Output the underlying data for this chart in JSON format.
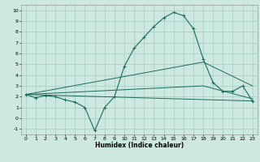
{
  "title": "",
  "xlabel": "Humidex (Indice chaleur)",
  "background_color": "#cce8e0",
  "grid_color": "#aacfc8",
  "line_color": "#1a6b5e",
  "xlim": [
    -0.5,
    23.5
  ],
  "ylim": [
    -1.5,
    10.5
  ],
  "xticks": [
    0,
    1,
    2,
    3,
    4,
    5,
    6,
    7,
    8,
    9,
    10,
    11,
    12,
    13,
    14,
    15,
    16,
    17,
    18,
    19,
    20,
    21,
    22,
    23
  ],
  "yticks": [
    -1,
    0,
    1,
    2,
    3,
    4,
    5,
    6,
    7,
    8,
    9,
    10
  ],
  "line1_x": [
    0,
    1,
    2,
    3,
    4,
    5,
    6,
    7,
    8,
    9,
    10,
    11,
    12,
    13,
    14,
    15,
    16,
    17,
    18,
    19,
    20,
    21,
    22,
    23
  ],
  "line1_y": [
    2.2,
    1.9,
    2.1,
    2.0,
    1.7,
    1.5,
    1.0,
    -1.15,
    1.0,
    2.0,
    4.8,
    6.5,
    7.5,
    8.5,
    9.3,
    9.8,
    9.5,
    8.3,
    5.5,
    3.3,
    2.5,
    2.5,
    3.0,
    1.6
  ],
  "line2_x": [
    0,
    23
  ],
  "line2_y": [
    2.2,
    1.6
  ],
  "line3_x": [
    0,
    18,
    23
  ],
  "line3_y": [
    2.2,
    5.2,
    3.0
  ],
  "line4_x": [
    0,
    18,
    23
  ],
  "line4_y": [
    2.2,
    3.0,
    1.8
  ]
}
